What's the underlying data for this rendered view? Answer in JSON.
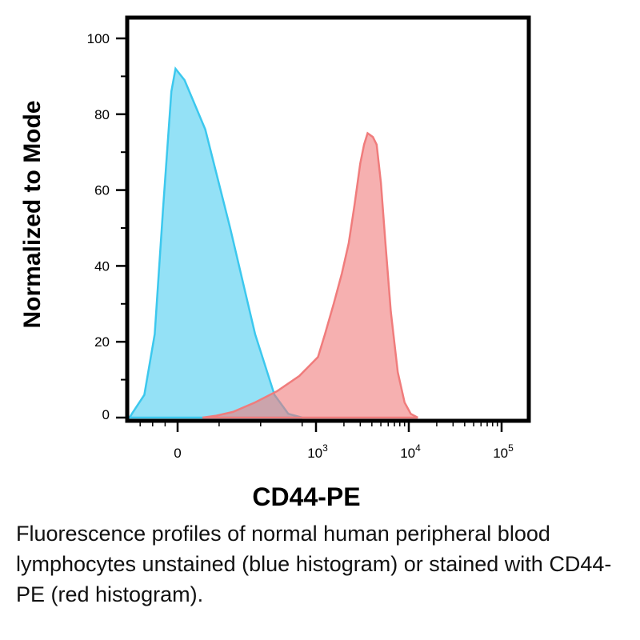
{
  "chart_data": {
    "type": "area",
    "xlabel": "CD44-PE",
    "ylabel": "Normalized to Mode",
    "x_scale": "biexponential (log above 10^3)",
    "ylim": [
      0,
      100
    ],
    "y_ticks": [
      "0",
      "20",
      "40",
      "60",
      "80",
      "100"
    ],
    "x_ticks": [
      {
        "base": "0",
        "exp": ""
      },
      {
        "base": "10",
        "exp": "3"
      },
      {
        "base": "10",
        "exp": "4"
      },
      {
        "base": "10",
        "exp": "5"
      }
    ],
    "series": [
      {
        "name": "unstained",
        "color": "#3cc8ee",
        "points": [
          [
            -1500,
            0
          ],
          [
            -1100,
            1
          ],
          [
            -800,
            6
          ],
          [
            -550,
            22
          ],
          [
            -350,
            55
          ],
          [
            -150,
            86
          ],
          [
            -50,
            92
          ],
          [
            50,
            89
          ],
          [
            200,
            76
          ],
          [
            380,
            50
          ],
          [
            560,
            22
          ],
          [
            700,
            6
          ],
          [
            800,
            1
          ],
          [
            900,
            0
          ]
        ]
      },
      {
        "name": "CD44-PE",
        "color": "#f07c7c",
        "points": [
          [
            180,
            0
          ],
          [
            280,
            0.5
          ],
          [
            400,
            1.5
          ],
          [
            560,
            4
          ],
          [
            720,
            7
          ],
          [
            880,
            11
          ],
          [
            1050,
            16
          ],
          [
            1250,
            22
          ],
          [
            1550,
            30
          ],
          [
            1900,
            38
          ],
          [
            2250,
            46
          ],
          [
            2600,
            56
          ],
          [
            3000,
            67
          ],
          [
            3300,
            72
          ],
          [
            3600,
            75
          ],
          [
            4100,
            74
          ],
          [
            4500,
            72
          ],
          [
            5000,
            62
          ],
          [
            5600,
            46
          ],
          [
            6400,
            28
          ],
          [
            7600,
            12
          ],
          [
            9000,
            4
          ],
          [
            10500,
            1
          ],
          [
            12500,
            0
          ]
        ]
      }
    ],
    "grid": false,
    "legend": "none"
  },
  "caption": "Fluorescence profiles of normal human peripheral blood lymphocytes unstained (blue histogram) or stained with CD44-PE (red histogram)."
}
